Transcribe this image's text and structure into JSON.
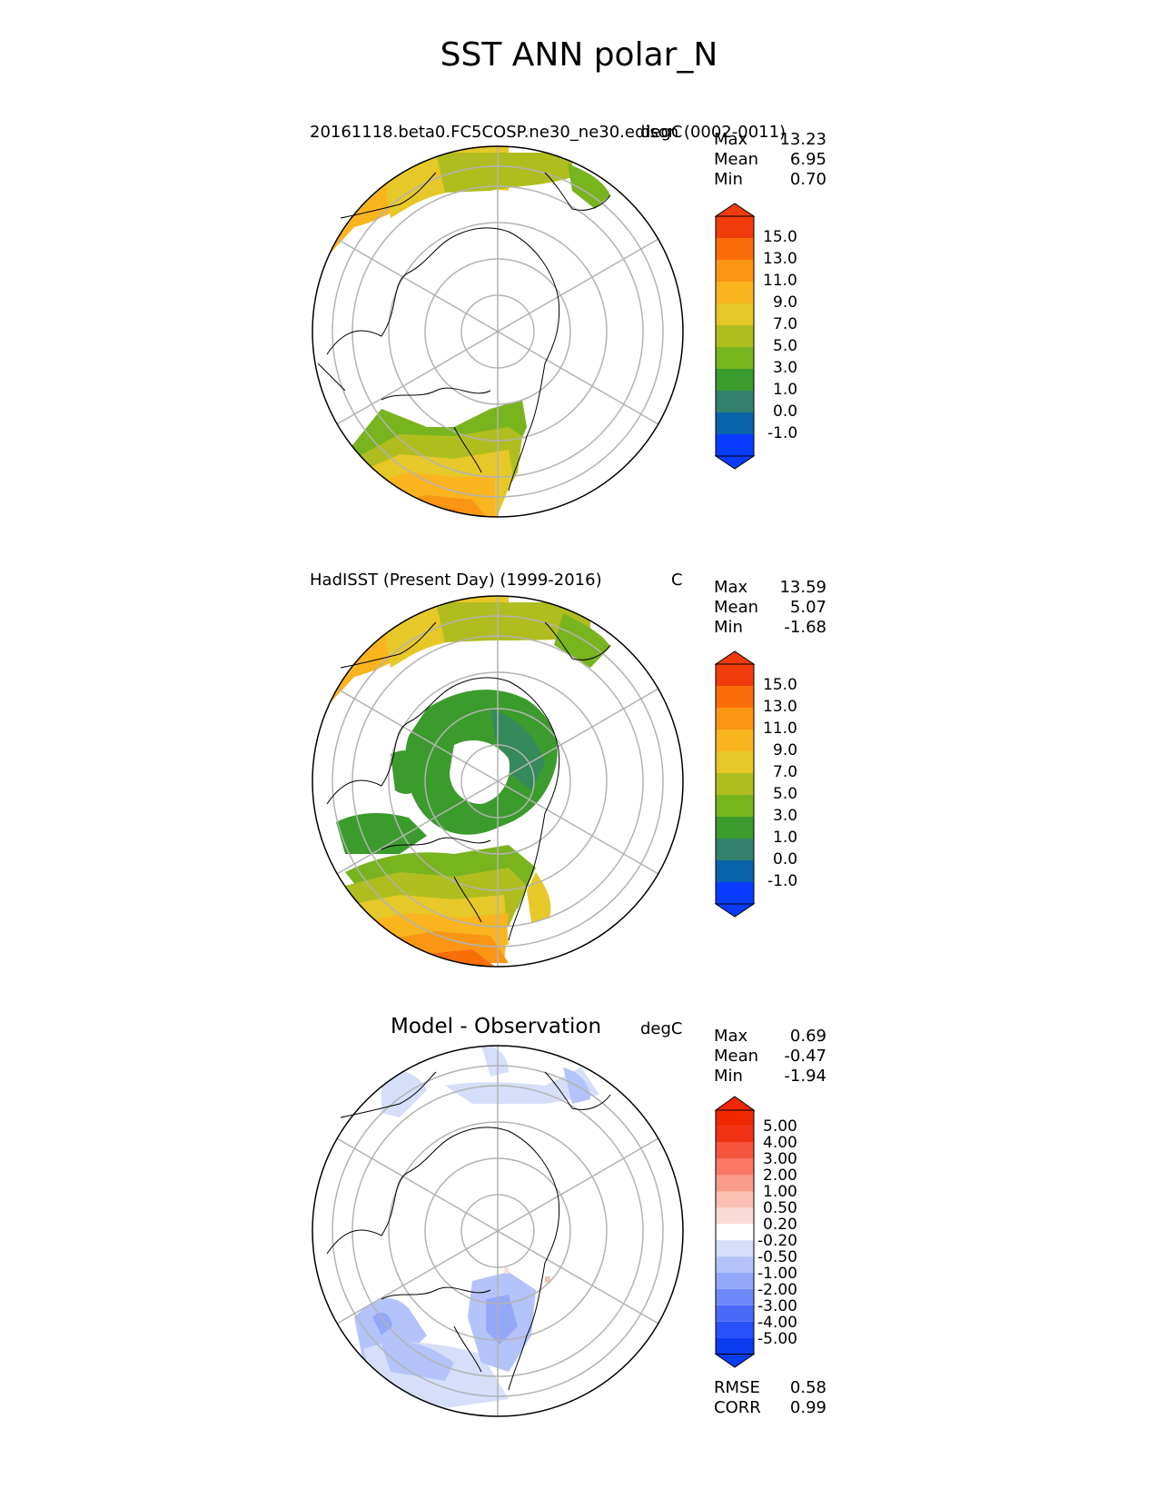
{
  "figure_title": "SST ANN polar_N",
  "panels": [
    {
      "title_left": "20161118.beta0.FC5COSP.ne30_ne30.edison (0002-0011)",
      "title_right": "degC",
      "stats": [
        {
          "name": "Max",
          "value": "13.23"
        },
        {
          "name": "Mean",
          "value": "6.95"
        },
        {
          "name": "Min",
          "value": "0.70"
        }
      ],
      "colorbar_ticks": [
        "15.0",
        "13.0",
        "11.0",
        "9.0",
        "7.0",
        "5.0",
        "3.0",
        "1.0",
        "0.0",
        "-1.0"
      ]
    },
    {
      "title_left": "HadISST (Present Day) (1999-2016)",
      "title_right": "C",
      "stats": [
        {
          "name": "Max",
          "value": "13.59"
        },
        {
          "name": "Mean",
          "value": "5.07"
        },
        {
          "name": "Min",
          "value": "-1.68"
        }
      ],
      "colorbar_ticks": [
        "15.0",
        "13.0",
        "11.0",
        "9.0",
        "7.0",
        "5.0",
        "3.0",
        "1.0",
        "0.0",
        "-1.0"
      ]
    },
    {
      "title_center": "Model - Observation",
      "title_right": "degC",
      "stats": [
        {
          "name": "Max",
          "value": "0.69"
        },
        {
          "name": "Mean",
          "value": "-0.47"
        },
        {
          "name": "Min",
          "value": "-1.94"
        }
      ],
      "colorbar_ticks": [
        "5.00",
        "4.00",
        "3.00",
        "2.00",
        "1.00",
        "0.50",
        "0.20",
        "-0.20",
        "-0.50",
        "-1.00",
        "-2.00",
        "-3.00",
        "-4.00",
        "-5.00"
      ],
      "extra_stats": [
        {
          "name": "RMSE",
          "value": "0.58"
        },
        {
          "name": "CORR",
          "value": "0.99"
        }
      ]
    }
  ],
  "chart_data": [
    {
      "type": "heatmap",
      "projection": "north polar stereographic",
      "title": "20161118.beta0.FC5COSP.ne30_ne30.edison (0002-0011)",
      "units": "degC",
      "stats": {
        "max": 13.23,
        "mean": 6.95,
        "min": 0.7
      },
      "colorbar": {
        "levels": [
          -1.0,
          0.0,
          1.0,
          3.0,
          5.0,
          7.0,
          9.0,
          11.0,
          13.0,
          15.0
        ],
        "colors": [
          "#0a3cff",
          "#0a64aa",
          "#32826e",
          "#3c9b2d",
          "#78b41e",
          "#afbe1e",
          "#e6c828",
          "#fab41e",
          "#fa9614",
          "#fa6e0a",
          "#f03c0a"
        ],
        "extend": "both"
      }
    },
    {
      "type": "heatmap",
      "projection": "north polar stereographic",
      "title": "HadISST (Present Day) (1999-2016)",
      "units": "C",
      "stats": {
        "max": 13.59,
        "mean": 5.07,
        "min": -1.68
      },
      "colorbar": {
        "levels": [
          -1.0,
          0.0,
          1.0,
          3.0,
          5.0,
          7.0,
          9.0,
          11.0,
          13.0,
          15.0
        ],
        "colors": [
          "#0a3cff",
          "#0a64aa",
          "#32826e",
          "#3c9b2d",
          "#78b41e",
          "#afbe1e",
          "#e6c828",
          "#fab41e",
          "#fa9614",
          "#fa6e0a",
          "#f03c0a"
        ],
        "extend": "both"
      }
    },
    {
      "type": "heatmap",
      "projection": "north polar stereographic",
      "title": "Model - Observation",
      "units": "degC",
      "stats": {
        "max": 0.69,
        "mean": -0.47,
        "min": -1.94,
        "rmse": 0.58,
        "corr": 0.99
      },
      "colorbar": {
        "levels": [
          -5.0,
          -4.0,
          -3.0,
          -2.0,
          -1.0,
          -0.5,
          -0.2,
          0.2,
          0.5,
          1.0,
          2.0,
          3.0,
          4.0,
          5.0
        ],
        "colors": [
          "#0a3cf0",
          "#2850fa",
          "#4a6afa",
          "#6e8afa",
          "#94a8fa",
          "#b4c4fa",
          "#d6defa",
          "#ffffff",
          "#fadcd6",
          "#fac0b4",
          "#fa9c8c",
          "#fa7864",
          "#f5553c",
          "#f03214",
          "#f02800"
        ],
        "extend": "both"
      }
    }
  ]
}
